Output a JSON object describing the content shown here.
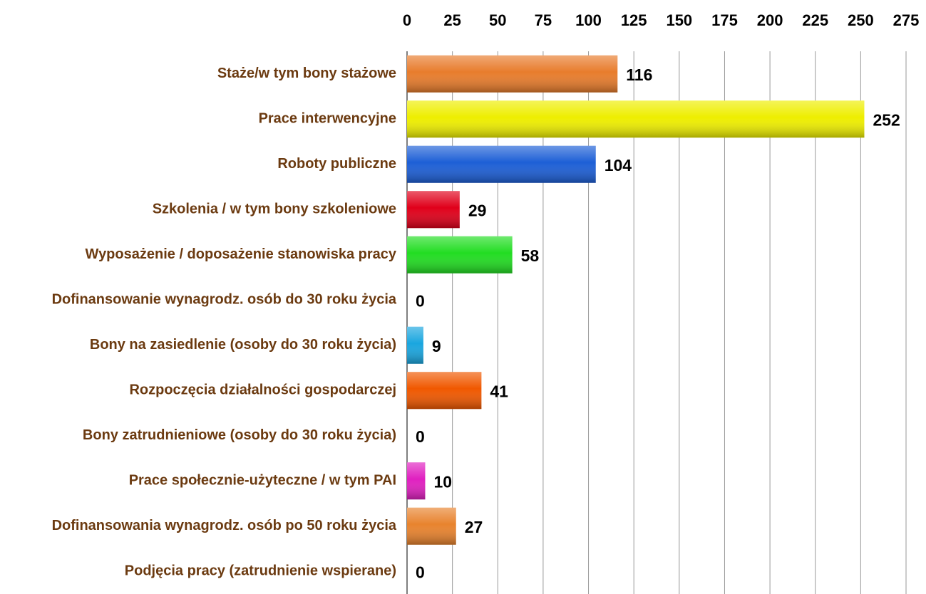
{
  "chart_data": {
    "type": "bar",
    "orientation": "horizontal",
    "categories": [
      "Staże/w tym bony stażowe",
      "Prace interwencyjne",
      "Roboty publiczne",
      "Szkolenia / w tym bony szkoleniowe",
      "Wyposażenie / doposażenie stanowiska pracy",
      "Dofinansowanie wynagrodz. osób do 30 roku życia",
      "Bony na zasiedlenie (osoby do 30  roku życia)",
      "Rozpoczęcia działalności gospodarczej",
      "Bony zatrudnieniowe (osoby do 30  roku życia)",
      "Prace społecznie-użyteczne / w tym PAI",
      "Dofinansowania wynagrodz. osób po 50 roku życia",
      "Podjęcia pracy (zatrudnienie wspierane)"
    ],
    "values": [
      116,
      252,
      104,
      29,
      58,
      0,
      9,
      41,
      0,
      10,
      27,
      0
    ],
    "colors": [
      "#e87c2c",
      "#eeee00",
      "#1d5fd6",
      "#e0001a",
      "#22dd22",
      "#888888",
      "#1aa6df",
      "#f05800",
      "#888888",
      "#e020c0",
      "#e8832e",
      "#888888"
    ],
    "xlim": [
      0,
      275
    ],
    "xticks": [
      0,
      25,
      50,
      75,
      100,
      125,
      150,
      175,
      200,
      225,
      250,
      275
    ],
    "grid": true,
    "axis_position": "top"
  }
}
